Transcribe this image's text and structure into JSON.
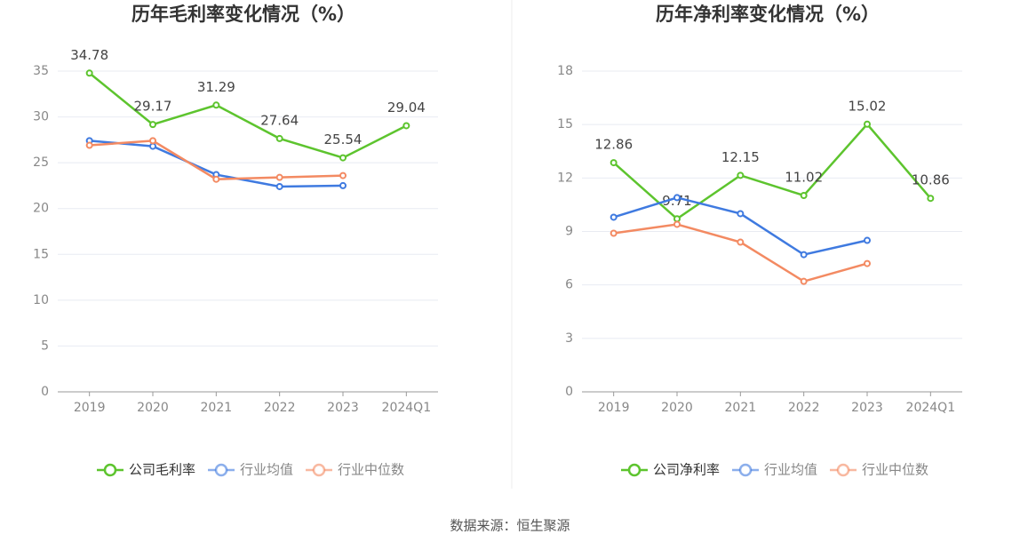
{
  "chart_data": [
    {
      "type": "line",
      "title": "历年毛利率变化情况（%）",
      "categories": [
        "2019",
        "2020",
        "2021",
        "2022",
        "2023",
        "2024Q1"
      ],
      "series": [
        {
          "name": "公司毛利率",
          "color": "#5dc42e",
          "show_values": true,
          "values": [
            34.78,
            29.17,
            31.29,
            27.64,
            25.54,
            29.04
          ]
        },
        {
          "name": "行业均值",
          "color": "#3f7ae0",
          "values": [
            27.4,
            26.8,
            23.7,
            22.4,
            22.5,
            null
          ]
        },
        {
          "name": "行业中位数",
          "color": "#f38a62",
          "values": [
            26.9,
            27.4,
            23.2,
            23.4,
            23.6,
            null
          ]
        }
      ],
      "ylim": [
        0,
        35
      ],
      "yticks": [
        0,
        5,
        10,
        15,
        20,
        25,
        30,
        35
      ],
      "grid": true,
      "legend": "bottom"
    },
    {
      "type": "line",
      "title": "历年净利率变化情况（%）",
      "categories": [
        "2019",
        "2020",
        "2021",
        "2022",
        "2023",
        "2024Q1"
      ],
      "series": [
        {
          "name": "公司净利率",
          "color": "#5dc42e",
          "show_values": true,
          "values": [
            12.86,
            9.71,
            12.15,
            11.02,
            15.02,
            10.86
          ]
        },
        {
          "name": "行业均值",
          "color": "#3f7ae0",
          "values": [
            9.8,
            10.9,
            10.0,
            7.7,
            8.5,
            null
          ]
        },
        {
          "name": "行业中位数",
          "color": "#f38a62",
          "values": [
            8.9,
            9.4,
            8.4,
            6.2,
            7.2,
            null
          ]
        }
      ],
      "ylim": [
        0,
        18
      ],
      "yticks": [
        0,
        3,
        6,
        9,
        12,
        15,
        18
      ],
      "grid": true,
      "legend": "bottom"
    }
  ],
  "source": "数据来源：恒生聚源"
}
